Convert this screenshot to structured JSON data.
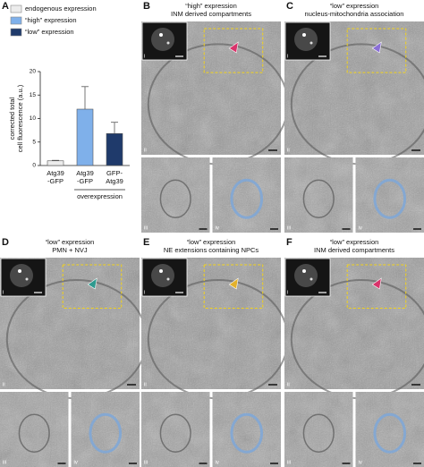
{
  "chart_data": {
    "type": "bar",
    "letter": "A",
    "legend": [
      "endogenous expression",
      "“high” expression",
      "“low” expression"
    ],
    "categories": [
      "Atg39 -GFP",
      "Atg39 -GFP",
      "GFP- Atg39"
    ],
    "values": [
      1,
      12,
      6.8
    ],
    "errors": [
      0.1,
      4.8,
      2.4
    ],
    "colors": [
      "#ececec",
      "#7fb0ea",
      "#1f3a6b"
    ],
    "ylabel": [
      "corrected total",
      "cell fluorescence (a.u.)"
    ],
    "annotation": "overexpression",
    "ylim": [
      0,
      20
    ],
    "yticks": [
      0,
      5,
      10,
      15,
      20
    ]
  },
  "panels": [
    {
      "letter": "B",
      "title": [
        "“high” expression",
        "INM derived compartments"
      ]
    },
    {
      "letter": "C",
      "title": [
        "“low” expression",
        "nucleus-mitochondria association"
      ]
    },
    {
      "letter": "D",
      "title": [
        "“low” expression",
        "PMN + NVJ"
      ]
    },
    {
      "letter": "E",
      "title": [
        "“low” expression",
        "NE extensions containing NPCs"
      ]
    },
    {
      "letter": "F",
      "title": [
        "“low” expression",
        "INM derived compartments"
      ]
    }
  ],
  "sublabels": [
    "i",
    "ii",
    "iii",
    "iv"
  ]
}
